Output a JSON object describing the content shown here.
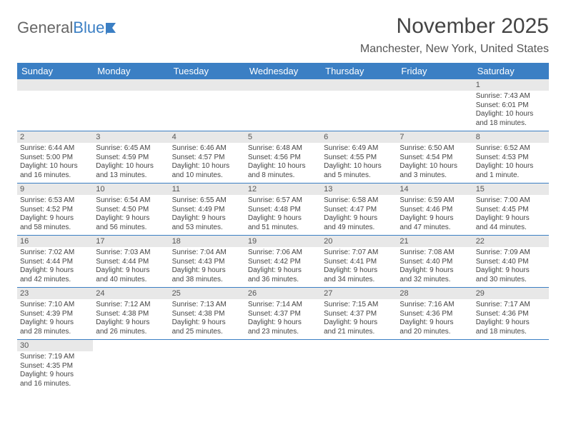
{
  "logo": {
    "text_general": "General",
    "text_blue": "Blue"
  },
  "header": {
    "month_title": "November 2025",
    "location": "Manchester, New York, United States"
  },
  "colors": {
    "header_bg": "#3b7fc4",
    "header_fg": "#ffffff",
    "daynum_bg": "#e8e8e8",
    "border": "#3b7fc4",
    "text": "#444444"
  },
  "day_headers": [
    "Sunday",
    "Monday",
    "Tuesday",
    "Wednesday",
    "Thursday",
    "Friday",
    "Saturday"
  ],
  "weeks": [
    [
      null,
      null,
      null,
      null,
      null,
      null,
      {
        "n": "1",
        "sr": "Sunrise: 7:43 AM",
        "ss": "Sunset: 6:01 PM",
        "d1": "Daylight: 10 hours",
        "d2": "and 18 minutes."
      }
    ],
    [
      {
        "n": "2",
        "sr": "Sunrise: 6:44 AM",
        "ss": "Sunset: 5:00 PM",
        "d1": "Daylight: 10 hours",
        "d2": "and 16 minutes."
      },
      {
        "n": "3",
        "sr": "Sunrise: 6:45 AM",
        "ss": "Sunset: 4:59 PM",
        "d1": "Daylight: 10 hours",
        "d2": "and 13 minutes."
      },
      {
        "n": "4",
        "sr": "Sunrise: 6:46 AM",
        "ss": "Sunset: 4:57 PM",
        "d1": "Daylight: 10 hours",
        "d2": "and 10 minutes."
      },
      {
        "n": "5",
        "sr": "Sunrise: 6:48 AM",
        "ss": "Sunset: 4:56 PM",
        "d1": "Daylight: 10 hours",
        "d2": "and 8 minutes."
      },
      {
        "n": "6",
        "sr": "Sunrise: 6:49 AM",
        "ss": "Sunset: 4:55 PM",
        "d1": "Daylight: 10 hours",
        "d2": "and 5 minutes."
      },
      {
        "n": "7",
        "sr": "Sunrise: 6:50 AM",
        "ss": "Sunset: 4:54 PM",
        "d1": "Daylight: 10 hours",
        "d2": "and 3 minutes."
      },
      {
        "n": "8",
        "sr": "Sunrise: 6:52 AM",
        "ss": "Sunset: 4:53 PM",
        "d1": "Daylight: 10 hours",
        "d2": "and 1 minute."
      }
    ],
    [
      {
        "n": "9",
        "sr": "Sunrise: 6:53 AM",
        "ss": "Sunset: 4:52 PM",
        "d1": "Daylight: 9 hours",
        "d2": "and 58 minutes."
      },
      {
        "n": "10",
        "sr": "Sunrise: 6:54 AM",
        "ss": "Sunset: 4:50 PM",
        "d1": "Daylight: 9 hours",
        "d2": "and 56 minutes."
      },
      {
        "n": "11",
        "sr": "Sunrise: 6:55 AM",
        "ss": "Sunset: 4:49 PM",
        "d1": "Daylight: 9 hours",
        "d2": "and 53 minutes."
      },
      {
        "n": "12",
        "sr": "Sunrise: 6:57 AM",
        "ss": "Sunset: 4:48 PM",
        "d1": "Daylight: 9 hours",
        "d2": "and 51 minutes."
      },
      {
        "n": "13",
        "sr": "Sunrise: 6:58 AM",
        "ss": "Sunset: 4:47 PM",
        "d1": "Daylight: 9 hours",
        "d2": "and 49 minutes."
      },
      {
        "n": "14",
        "sr": "Sunrise: 6:59 AM",
        "ss": "Sunset: 4:46 PM",
        "d1": "Daylight: 9 hours",
        "d2": "and 47 minutes."
      },
      {
        "n": "15",
        "sr": "Sunrise: 7:00 AM",
        "ss": "Sunset: 4:45 PM",
        "d1": "Daylight: 9 hours",
        "d2": "and 44 minutes."
      }
    ],
    [
      {
        "n": "16",
        "sr": "Sunrise: 7:02 AM",
        "ss": "Sunset: 4:44 PM",
        "d1": "Daylight: 9 hours",
        "d2": "and 42 minutes."
      },
      {
        "n": "17",
        "sr": "Sunrise: 7:03 AM",
        "ss": "Sunset: 4:44 PM",
        "d1": "Daylight: 9 hours",
        "d2": "and 40 minutes."
      },
      {
        "n": "18",
        "sr": "Sunrise: 7:04 AM",
        "ss": "Sunset: 4:43 PM",
        "d1": "Daylight: 9 hours",
        "d2": "and 38 minutes."
      },
      {
        "n": "19",
        "sr": "Sunrise: 7:06 AM",
        "ss": "Sunset: 4:42 PM",
        "d1": "Daylight: 9 hours",
        "d2": "and 36 minutes."
      },
      {
        "n": "20",
        "sr": "Sunrise: 7:07 AM",
        "ss": "Sunset: 4:41 PM",
        "d1": "Daylight: 9 hours",
        "d2": "and 34 minutes."
      },
      {
        "n": "21",
        "sr": "Sunrise: 7:08 AM",
        "ss": "Sunset: 4:40 PM",
        "d1": "Daylight: 9 hours",
        "d2": "and 32 minutes."
      },
      {
        "n": "22",
        "sr": "Sunrise: 7:09 AM",
        "ss": "Sunset: 4:40 PM",
        "d1": "Daylight: 9 hours",
        "d2": "and 30 minutes."
      }
    ],
    [
      {
        "n": "23",
        "sr": "Sunrise: 7:10 AM",
        "ss": "Sunset: 4:39 PM",
        "d1": "Daylight: 9 hours",
        "d2": "and 28 minutes."
      },
      {
        "n": "24",
        "sr": "Sunrise: 7:12 AM",
        "ss": "Sunset: 4:38 PM",
        "d1": "Daylight: 9 hours",
        "d2": "and 26 minutes."
      },
      {
        "n": "25",
        "sr": "Sunrise: 7:13 AM",
        "ss": "Sunset: 4:38 PM",
        "d1": "Daylight: 9 hours",
        "d2": "and 25 minutes."
      },
      {
        "n": "26",
        "sr": "Sunrise: 7:14 AM",
        "ss": "Sunset: 4:37 PM",
        "d1": "Daylight: 9 hours",
        "d2": "and 23 minutes."
      },
      {
        "n": "27",
        "sr": "Sunrise: 7:15 AM",
        "ss": "Sunset: 4:37 PM",
        "d1": "Daylight: 9 hours",
        "d2": "and 21 minutes."
      },
      {
        "n": "28",
        "sr": "Sunrise: 7:16 AM",
        "ss": "Sunset: 4:36 PM",
        "d1": "Daylight: 9 hours",
        "d2": "and 20 minutes."
      },
      {
        "n": "29",
        "sr": "Sunrise: 7:17 AM",
        "ss": "Sunset: 4:36 PM",
        "d1": "Daylight: 9 hours",
        "d2": "and 18 minutes."
      }
    ],
    [
      {
        "n": "30",
        "sr": "Sunrise: 7:19 AM",
        "ss": "Sunset: 4:35 PM",
        "d1": "Daylight: 9 hours",
        "d2": "and 16 minutes."
      },
      null,
      null,
      null,
      null,
      null,
      null
    ]
  ]
}
